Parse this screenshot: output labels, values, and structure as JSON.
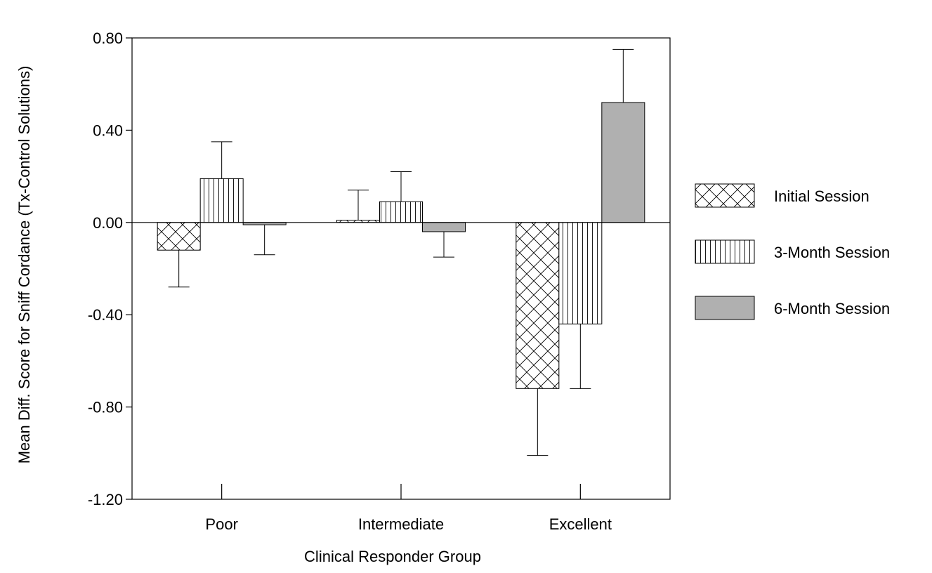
{
  "chart_data": {
    "type": "bar",
    "xlabel": "Clinical Responder Group",
    "ylabel": "Mean Diff. Score for Sniff Cordance (Tx-Control Solutions)",
    "categories": [
      "Poor",
      "Intermediate",
      "Excellent"
    ],
    "ylim": [
      -1.2,
      0.8
    ],
    "yticks": [
      0.8,
      0.4,
      0.0,
      -0.4,
      -0.8,
      -1.2
    ],
    "ytick_labels": [
      "0.80",
      "0.40",
      "0.00",
      "-0.40",
      "-0.80",
      "-1.20"
    ],
    "zero_line": true,
    "grid": false,
    "legend_position": "right",
    "series": [
      {
        "name": "Initial Session",
        "fill": "crosshatch",
        "color": "#ffffff",
        "values": [
          -0.12,
          0.01,
          -0.72
        ],
        "errors": [
          0.16,
          0.13,
          0.29
        ]
      },
      {
        "name": "3-Month Session",
        "fill": "vertical-lines",
        "color": "#ffffff",
        "values": [
          0.19,
          0.09,
          -0.44
        ],
        "errors": [
          0.16,
          0.13,
          0.28
        ]
      },
      {
        "name": "6-Month Session",
        "fill": "solid",
        "color": "#b0b0b0",
        "values": [
          -0.01,
          -0.04,
          0.52
        ],
        "errors": [
          0.13,
          0.11,
          0.23
        ]
      }
    ]
  }
}
